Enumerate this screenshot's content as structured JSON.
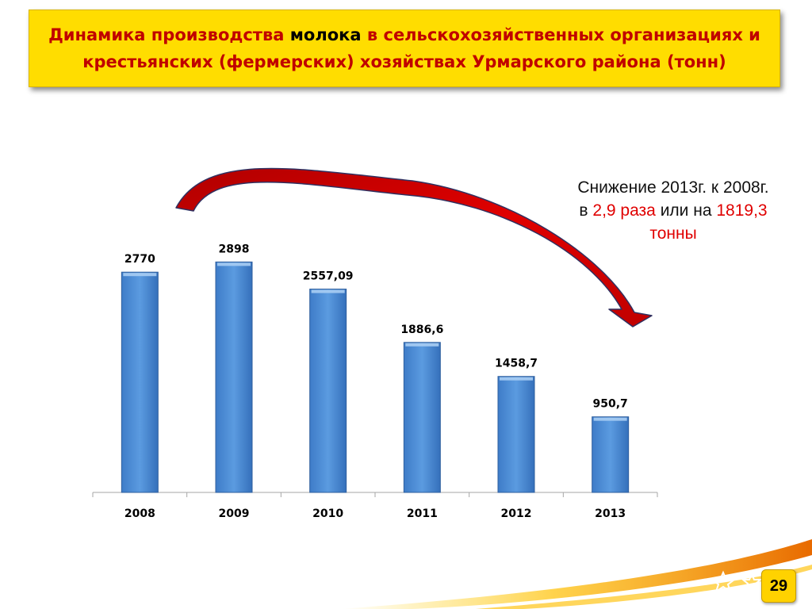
{
  "slide": {
    "title_part1": "Динамика производства ",
    "title_highlight": "молока",
    "title_part2": " в сельскохозяйственных организациях и крестьянских (фермерских) хозяйствах Урмарского района (тонн)",
    "page_number": "29"
  },
  "note": {
    "line1": "Снижение 2013г. к 2008г.",
    "pre": "в ",
    "ratio": "2,9 раза",
    "mid": " или на ",
    "amount": "1819,3",
    "unit": "тонны"
  },
  "colors": {
    "bar": "#5b9be0",
    "title_bg": "#ffdd00",
    "title_text": "#c00000",
    "arrow": "#e00000",
    "accent_red": "#e00000"
  },
  "chart_data": {
    "type": "bar",
    "categories": [
      "2008",
      "2009",
      "2010",
      "2011",
      "2012",
      "2013"
    ],
    "values": [
      2770,
      2898,
      2557.09,
      1886.6,
      1458.7,
      950.7
    ],
    "data_labels": [
      "2770",
      "2898",
      "2557,09",
      "1886,6",
      "1458,7",
      "950,7"
    ],
    "title": "",
    "xlabel": "",
    "ylabel": "",
    "ylim": [
      0,
      3500
    ],
    "grid": false,
    "legend": "none",
    "annotation": "curved red arrow from 2008 to 2013"
  }
}
